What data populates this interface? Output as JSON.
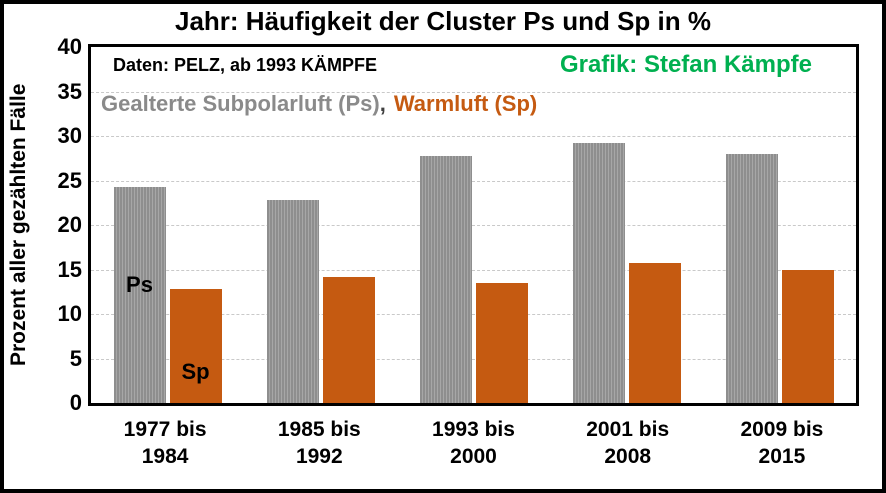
{
  "title": "Jahr: Häufigkeit der Cluster Ps und Sp in %",
  "annotations": {
    "data_note": "Daten: PELZ, ab 1993 KÄMPFE",
    "credit": "Grafik: Stefan Kämpfe"
  },
  "legend": {
    "ps": "Gealterte Subpolarluft (Ps)",
    "comma": ",",
    "sp": "Warmluft (Sp)"
  },
  "colors": {
    "ps_bar_dark": "#8e8e8e",
    "ps_bar_light": "#a7a7a7",
    "sp_bar": "#C55A11",
    "credit_green": "#00B050",
    "legend_gray": "#8a8a8a",
    "gridline": "#c9c9c9",
    "text": "#000000",
    "background": "#ffffff"
  },
  "chart_data": {
    "type": "bar",
    "title": "Jahr: Häufigkeit der Cluster Ps und Sp in %",
    "categories": [
      "1977 bis 1984",
      "1985 bis 1992",
      "1993 bis 2000",
      "2001 bis 2008",
      "2009 bis 2015"
    ],
    "categories_lines": [
      [
        "1977 bis",
        "1984"
      ],
      [
        "1985 bis",
        "1992"
      ],
      [
        "1993 bis",
        "2000"
      ],
      [
        "2001 bis",
        "2008"
      ],
      [
        "2009 bis",
        "2015"
      ]
    ],
    "series": [
      {
        "name": "Gealterte Subpolarluft (Ps)",
        "short_label": "Ps",
        "color": "#8e8e8e",
        "pattern": "vertical-stripes",
        "values": [
          24.3,
          22.8,
          27.8,
          29.2,
          28.0
        ]
      },
      {
        "name": "Warmluft (Sp)",
        "short_label": "Sp",
        "color": "#C55A11",
        "pattern": "solid",
        "values": [
          12.8,
          14.2,
          13.5,
          15.7,
          14.9
        ]
      }
    ],
    "xlabel": "",
    "ylabel": "Prozent aller gezählten Fälle",
    "ylim": [
      0,
      40
    ],
    "yticks": [
      0,
      5,
      10,
      15,
      20,
      25,
      30,
      35,
      40
    ],
    "grid": "horizontal-dashed",
    "legend_position": "top-left-inside",
    "bar_annotations": [
      "Ps",
      "Sp"
    ]
  }
}
